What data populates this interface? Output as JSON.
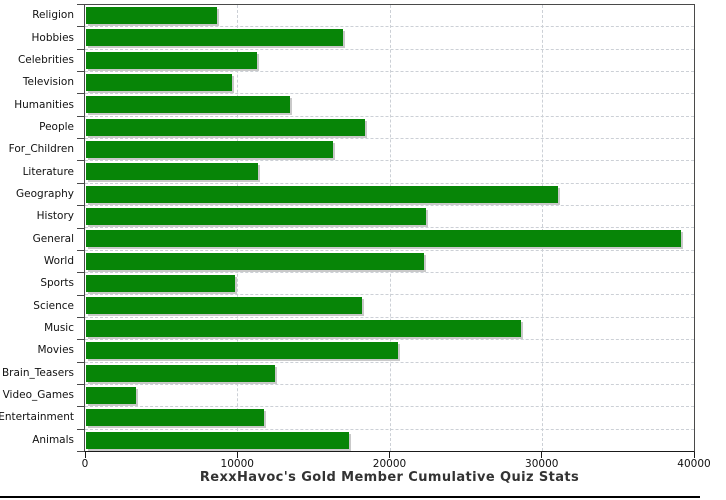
{
  "chart_data": {
    "type": "bar",
    "orientation": "horizontal",
    "title": "RexxHavoc's Gold Member Cumulative Quiz Stats",
    "categories": [
      "Religion",
      "Hobbies",
      "Celebrities",
      "Television",
      "Humanities",
      "People",
      "For_Children",
      "Literature",
      "Geography",
      "History",
      "General",
      "World",
      "Sports",
      "Science",
      "Music",
      "Movies",
      "Brain_Teasers",
      "Video_Games",
      "Entertainment",
      "Animals"
    ],
    "values": [
      8600,
      16900,
      11200,
      9600,
      13400,
      18300,
      16200,
      11300,
      31000,
      22300,
      39100,
      22200,
      9800,
      18100,
      28600,
      20500,
      12400,
      3300,
      11700,
      17300
    ],
    "xlabel": "",
    "ylabel": "",
    "xlim": [
      0,
      40000
    ],
    "x_ticks": [
      0,
      10000,
      20000,
      30000,
      40000
    ],
    "x_tick_labels": [
      "0",
      "10000",
      "20000",
      "30000",
      "40000"
    ],
    "grid": "dashed-both-axes",
    "legend": "none",
    "bar_color": "#078507",
    "bar_shadow_color": "#c9c9c9",
    "gridline_color": "#ccd0d6",
    "frame_color": "#4a4a4a",
    "axis_color": "#1a1a1a",
    "title_color": "#333333",
    "label_color": "#111111"
  }
}
